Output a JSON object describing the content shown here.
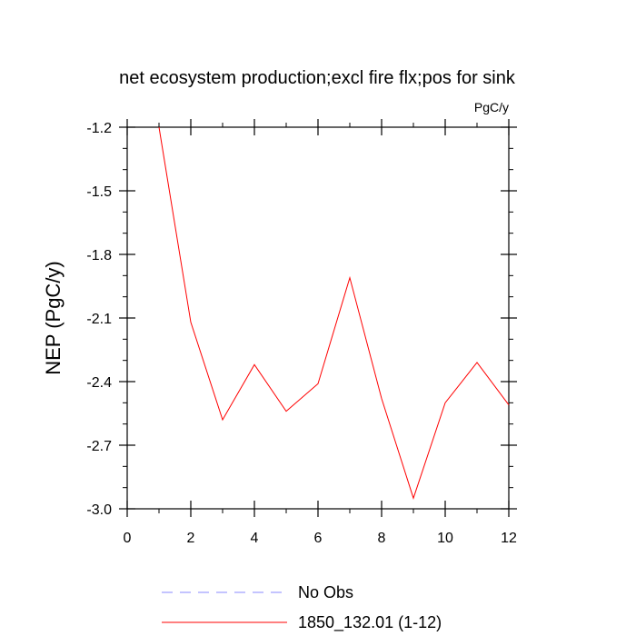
{
  "chart_data": {
    "type": "line",
    "title": "net ecosystem production;excl fire flx;pos for sink",
    "units_label": "PgC/y",
    "ylabel": "NEP  (PgC/y)",
    "xlabel": "",
    "xlim": [
      0,
      12
    ],
    "ylim": [
      -3.0,
      -1.2
    ],
    "x_ticks": [
      "0",
      "2",
      "4",
      "6",
      "8",
      "10",
      "12"
    ],
    "y_ticks": [
      "-1.2",
      "-1.5",
      "-1.8",
      "-2.1",
      "-2.4",
      "-2.7",
      "-3.0"
    ],
    "grid": false,
    "legend_position": "bottom",
    "series": [
      {
        "name": "1850_132.01 (1-12)",
        "color": "#ff0000",
        "dash": "solid",
        "x": [
          1,
          2,
          3,
          4,
          5,
          6,
          7,
          8,
          9,
          10,
          11,
          12
        ],
        "values": [
          -1.2,
          -2.12,
          -2.58,
          -2.32,
          -2.54,
          -2.41,
          -1.91,
          -2.48,
          -2.95,
          -2.5,
          -2.31,
          -2.51
        ]
      },
      {
        "name": "No Obs",
        "color": "#8888ff",
        "dash": "dashed",
        "x": [],
        "values": []
      }
    ]
  }
}
